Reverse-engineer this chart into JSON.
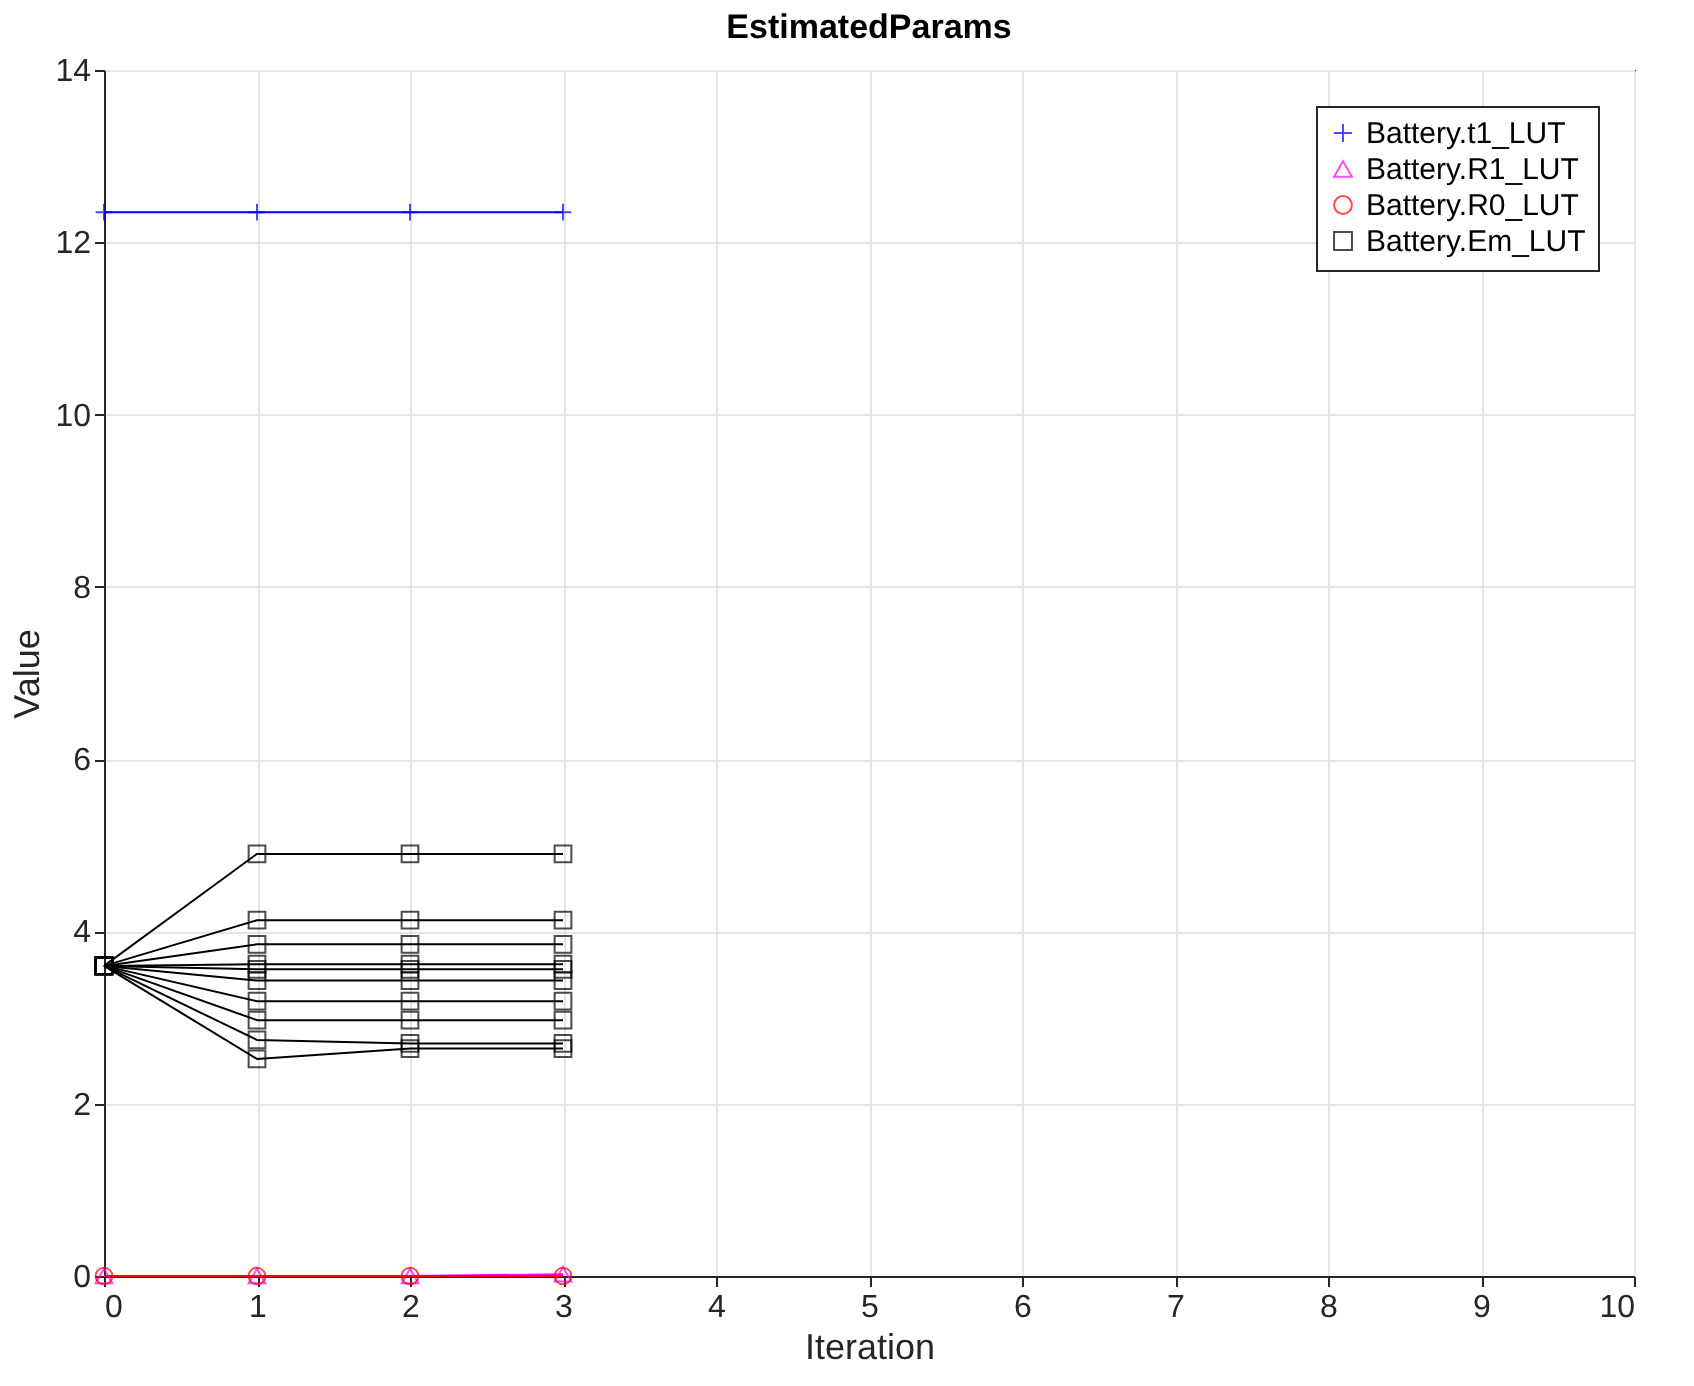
{
  "chart_data": {
    "type": "line",
    "title": "EstimatedParams",
    "xlabel": "Iteration",
    "ylabel": "Value",
    "x": [
      0,
      1,
      2,
      3
    ],
    "xlim": [
      0,
      10
    ],
    "xticks": [
      0,
      1,
      2,
      3,
      4,
      5,
      6,
      7,
      8,
      9,
      10
    ],
    "ylim": [
      0,
      14
    ],
    "yticks": [
      0,
      2,
      4,
      6,
      8,
      10,
      12,
      14
    ],
    "grid": true,
    "legend": "top right",
    "series": [
      {
        "name": "Battery.t1_LUT",
        "color": "#0000ff",
        "marker": "cross",
        "values": [
          12.35,
          12.35,
          12.35,
          12.35
        ]
      },
      {
        "name": "Battery.R1_LUT",
        "color": "#ff00ff",
        "marker": "triangle",
        "values": [
          0,
          0,
          0,
          0.02
        ]
      },
      {
        "name": "Battery.R0_LUT",
        "color": "#ff0000",
        "marker": "circle",
        "values": [
          0,
          0,
          0,
          0
        ]
      },
      {
        "name": "Battery.Em_LUT",
        "color": "#000000",
        "marker": "square",
        "values": [
          3.6,
          4.9,
          4.9,
          4.9
        ]
      },
      {
        "color": "#000000",
        "marker": "square",
        "values": [
          3.6,
          4.13,
          4.13,
          4.13
        ]
      },
      {
        "color": "#000000",
        "marker": "square",
        "values": [
          3.6,
          3.85,
          3.85,
          3.85
        ]
      },
      {
        "color": "#000000",
        "marker": "square",
        "values": [
          3.6,
          3.62,
          3.62,
          3.62
        ]
      },
      {
        "color": "#000000",
        "marker": "square",
        "values": [
          3.6,
          3.56,
          3.56,
          3.56
        ]
      },
      {
        "color": "#000000",
        "marker": "square",
        "values": [
          3.6,
          3.43,
          3.43,
          3.43
        ]
      },
      {
        "color": "#000000",
        "marker": "square",
        "values": [
          3.6,
          3.19,
          3.19,
          3.19
        ]
      },
      {
        "color": "#000000",
        "marker": "square",
        "values": [
          3.6,
          2.97,
          2.97,
          2.97
        ]
      },
      {
        "color": "#000000",
        "marker": "square",
        "values": [
          3.6,
          2.74,
          2.7,
          2.7
        ]
      },
      {
        "color": "#000000",
        "marker": "square",
        "values": [
          3.6,
          2.52,
          2.64,
          2.64
        ]
      }
    ]
  }
}
